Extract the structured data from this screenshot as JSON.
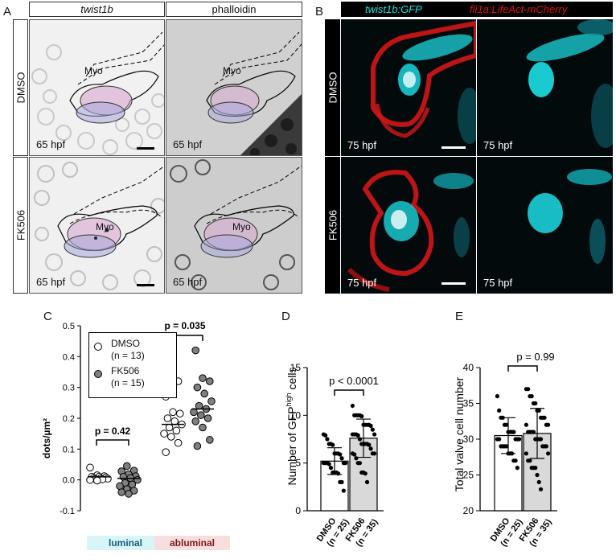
{
  "panel_labels": {
    "A": "A",
    "B": "B",
    "C": "C",
    "D": "D",
    "E": "E"
  },
  "panelA": {
    "col_headers": [
      "twist1b",
      "phalloidin"
    ],
    "row_labels": [
      "DMSO",
      "FK506"
    ],
    "stage": "65 hpf",
    "structure_label": "Myo"
  },
  "panelB": {
    "header_green": "twist1b:GFP",
    "header_red": "fli1a:LifeAct-mCherry",
    "row_labels": [
      "DMSO",
      "FK506"
    ],
    "stage": "75 hpf",
    "colors": {
      "green": "#19e0e0",
      "red": "#e01010"
    }
  },
  "chart_data": [
    {
      "id": "C",
      "type": "scatter",
      "ylabel": "dots/µm²",
      "ylim": [
        -0.1,
        0.5
      ],
      "yticks": [
        "-0.1",
        "0.0",
        "0.1",
        "0.2",
        "0.3",
        "0.4",
        "0.5"
      ],
      "groups": [
        "luminal",
        "abluminal"
      ],
      "group_colors": [
        "#d8f6f8",
        "#f8dede"
      ],
      "legend": [
        {
          "name": "DMSO",
          "n": "(n = 13)",
          "fill": "#ffffff"
        },
        {
          "name": "FK506",
          "n": "(n = 15)",
          "fill": "#808080"
        }
      ],
      "pvalues": [
        "p = 0.42",
        "p = 0.035"
      ],
      "series": [
        {
          "name": "DMSO",
          "group": "luminal",
          "mean": 0.01,
          "values": [
            0.04,
            0.015,
            0.012,
            0.01,
            0.01,
            0.008,
            0.006,
            0.005,
            0.004,
            0.003,
            0.002,
            0.0,
            -0.002
          ]
        },
        {
          "name": "FK506",
          "group": "luminal",
          "mean": 0.005,
          "values": [
            0.045,
            0.03,
            0.028,
            0.018,
            0.012,
            0.01,
            0.006,
            0.0,
            -0.01,
            -0.015,
            -0.02,
            -0.03,
            -0.035,
            -0.04,
            -0.045
          ]
        },
        {
          "name": "DMSO",
          "group": "abluminal",
          "mean": 0.18,
          "values": [
            0.32,
            0.27,
            0.22,
            0.215,
            0.2,
            0.19,
            0.18,
            0.17,
            0.16,
            0.15,
            0.14,
            0.12,
            0.09
          ]
        },
        {
          "name": "FK506",
          "group": "abluminal",
          "mean": 0.23,
          "values": [
            0.42,
            0.33,
            0.32,
            0.3,
            0.28,
            0.255,
            0.24,
            0.23,
            0.22,
            0.21,
            0.2,
            0.19,
            0.17,
            0.13,
            0.11
          ]
        }
      ]
    },
    {
      "id": "D",
      "type": "bar",
      "ylabel": "Number of GFP^high cells",
      "ylabel_main": "Number of GFP",
      "ylabel_sup": "high",
      "ylabel_end": " cells",
      "ylim": [
        0,
        15
      ],
      "yticks": [
        "0",
        "5",
        "10",
        "15"
      ],
      "categories": [
        [
          "DMSO",
          "(n = 25)"
        ],
        [
          "FK506",
          "(n = 35)"
        ]
      ],
      "bar_fills": [
        "#ffffff",
        "#d9d9d9"
      ],
      "pvalue": "p < 0.0001",
      "means": [
        5.2,
        7.6
      ],
      "sd": [
        1.4,
        2.0
      ],
      "values": [
        [
          8,
          7.9,
          7.5,
          7,
          7,
          6.9,
          6,
          6,
          6,
          5.9,
          5.5,
          5,
          5,
          5,
          5,
          5,
          4.9,
          4.5,
          4,
          4,
          4,
          3.9,
          3,
          3,
          2.1
        ],
        [
          11,
          10,
          10,
          10,
          10,
          9.9,
          9,
          9,
          9,
          9,
          8.9,
          8.5,
          8,
          8,
          8,
          8,
          7.9,
          7.5,
          7,
          7,
          7,
          7,
          6.9,
          6.5,
          6,
          6,
          6,
          5.9,
          5.5,
          5,
          5,
          4,
          4,
          3.9,
          3
        ]
      ]
    },
    {
      "id": "E",
      "type": "bar",
      "ylabel": "Total valve cell number",
      "ylim": [
        20,
        40
      ],
      "yticks": [
        "20",
        "25",
        "30",
        "35",
        "40"
      ],
      "categories": [
        [
          "DMSO",
          "(n = 25)"
        ],
        [
          "FK506",
          "(n = 35)"
        ]
      ],
      "bar_fills": [
        "#ffffff",
        "#d9d9d9"
      ],
      "pvalue": "p = 0.99",
      "means": [
        30.5,
        30.8
      ],
      "sd": [
        2.5,
        3.5
      ],
      "values": [
        [
          36,
          34,
          33,
          33,
          32,
          32,
          31,
          31,
          31,
          31,
          30,
          30,
          30,
          30,
          30,
          29,
          29,
          29,
          29,
          28,
          28,
          28,
          27,
          27,
          26
        ],
        [
          37,
          37,
          36,
          36,
          35,
          35,
          34,
          34,
          33,
          33,
          33,
          32,
          32,
          32,
          31,
          31,
          31,
          31,
          30,
          30,
          30,
          30,
          29,
          29,
          29,
          28,
          28,
          27,
          27,
          26,
          26,
          26,
          25,
          24,
          23
        ]
      ]
    }
  ]
}
